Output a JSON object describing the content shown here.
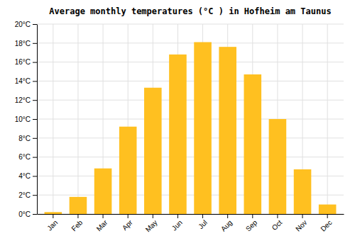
{
  "chart_data": {
    "type": "bar",
    "title": "Average monthly temperatures (°C ) in Hofheim am Taunus",
    "categories": [
      "Jan",
      "Feb",
      "Mar",
      "Apr",
      "May",
      "Jun",
      "Jul",
      "Aug",
      "Sep",
      "Oct",
      "Nov",
      "Dec"
    ],
    "values": [
      0.2,
      1.8,
      4.8,
      9.2,
      13.3,
      16.8,
      18.1,
      17.6,
      14.7,
      10.0,
      4.7,
      1.0
    ],
    "color": "#FFC020",
    "ylim": [
      0,
      20
    ],
    "yticks": [
      {
        "value": 0,
        "label": "0°C"
      },
      {
        "value": 2,
        "label": "2°C"
      },
      {
        "value": 4,
        "label": "4°C"
      },
      {
        "value": 6,
        "label": "6°C"
      },
      {
        "value": 8,
        "label": "8°C"
      },
      {
        "value": 10,
        "label": "10°C"
      },
      {
        "value": 12,
        "label": "12°C"
      },
      {
        "value": 14,
        "label": "14°C"
      },
      {
        "value": 16,
        "label": "16°C"
      },
      {
        "value": 18,
        "label": "18°C"
      },
      {
        "value": 20,
        "label": "20°C"
      }
    ],
    "grid": true
  }
}
